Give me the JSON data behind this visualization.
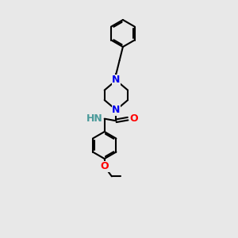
{
  "background_color": "#e8e8e8",
  "bond_color": "#000000",
  "N_color": "#0000ee",
  "O_color": "#ff0000",
  "NH_color": "#4a9a9a",
  "line_width": 1.5,
  "figsize": [
    3.0,
    3.0
  ],
  "dpi": 100,
  "xlim": [
    -1.8,
    1.8
  ],
  "ylim": [
    -4.5,
    4.5
  ]
}
